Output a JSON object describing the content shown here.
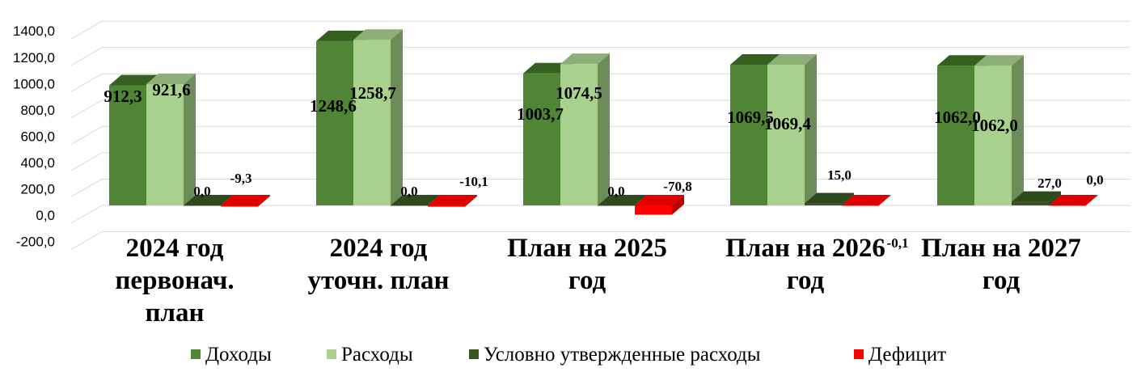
{
  "chart_data": {
    "type": "bar",
    "y_axis": {
      "min": -200,
      "max": 1400,
      "step": 200,
      "tick_labels": [
        "-200,0",
        "0,0",
        "200,0",
        "400,0",
        "600,0",
        "800,0",
        "1000,0",
        "1200,0",
        "1400,0"
      ]
    },
    "grid": true,
    "categories": [
      [
        "2024 год",
        "первонач.",
        "план"
      ],
      [
        "2024 год",
        "уточн. план"
      ],
      [
        "План на  2025",
        "год"
      ],
      [
        "План на 2026",
        "год"
      ],
      [
        "План на 2027",
        "год"
      ]
    ],
    "series": [
      {
        "name": "Доходы",
        "color": "#4f8534",
        "side": "#3f6a28",
        "top": "#36601f",
        "values": [
          912.3,
          1248.6,
          1003.7,
          1069.5,
          1062.0
        ],
        "labels": [
          "912,3",
          "1248,6",
          "1003,7",
          "1069,5",
          "1062,0"
        ]
      },
      {
        "name": "Расходы",
        "color": "#a9d18e",
        "side": "#6e8c59",
        "top": "#8eae78",
        "values": [
          921.6,
          1258.7,
          1074.5,
          1069.4,
          1062.0
        ],
        "labels": [
          "921,6",
          "1258,7",
          "1074,5",
          "1069,4",
          "1062,0"
        ]
      },
      {
        "name": "Условно утвержденные расходы",
        "color": "#375623",
        "side": "#2b441b",
        "top": "#2e4a1d",
        "values": [
          0.0,
          0.0,
          0.0,
          15.0,
          27.0
        ],
        "labels": [
          "0,0",
          "0,0",
          "0,0",
          "15,0",
          "27,0"
        ]
      },
      {
        "name": "Дефицит",
        "color": "#ff0000",
        "side": "#b80000",
        "top": "#e00000",
        "values": [
          -9.3,
          -10.1,
          -70.8,
          -0.1,
          0.0
        ],
        "labels": [
          "-9,3",
          "-10,1",
          "-70,8",
          "-0,1",
          "0,0"
        ]
      }
    ],
    "legend_position": "bottom"
  }
}
